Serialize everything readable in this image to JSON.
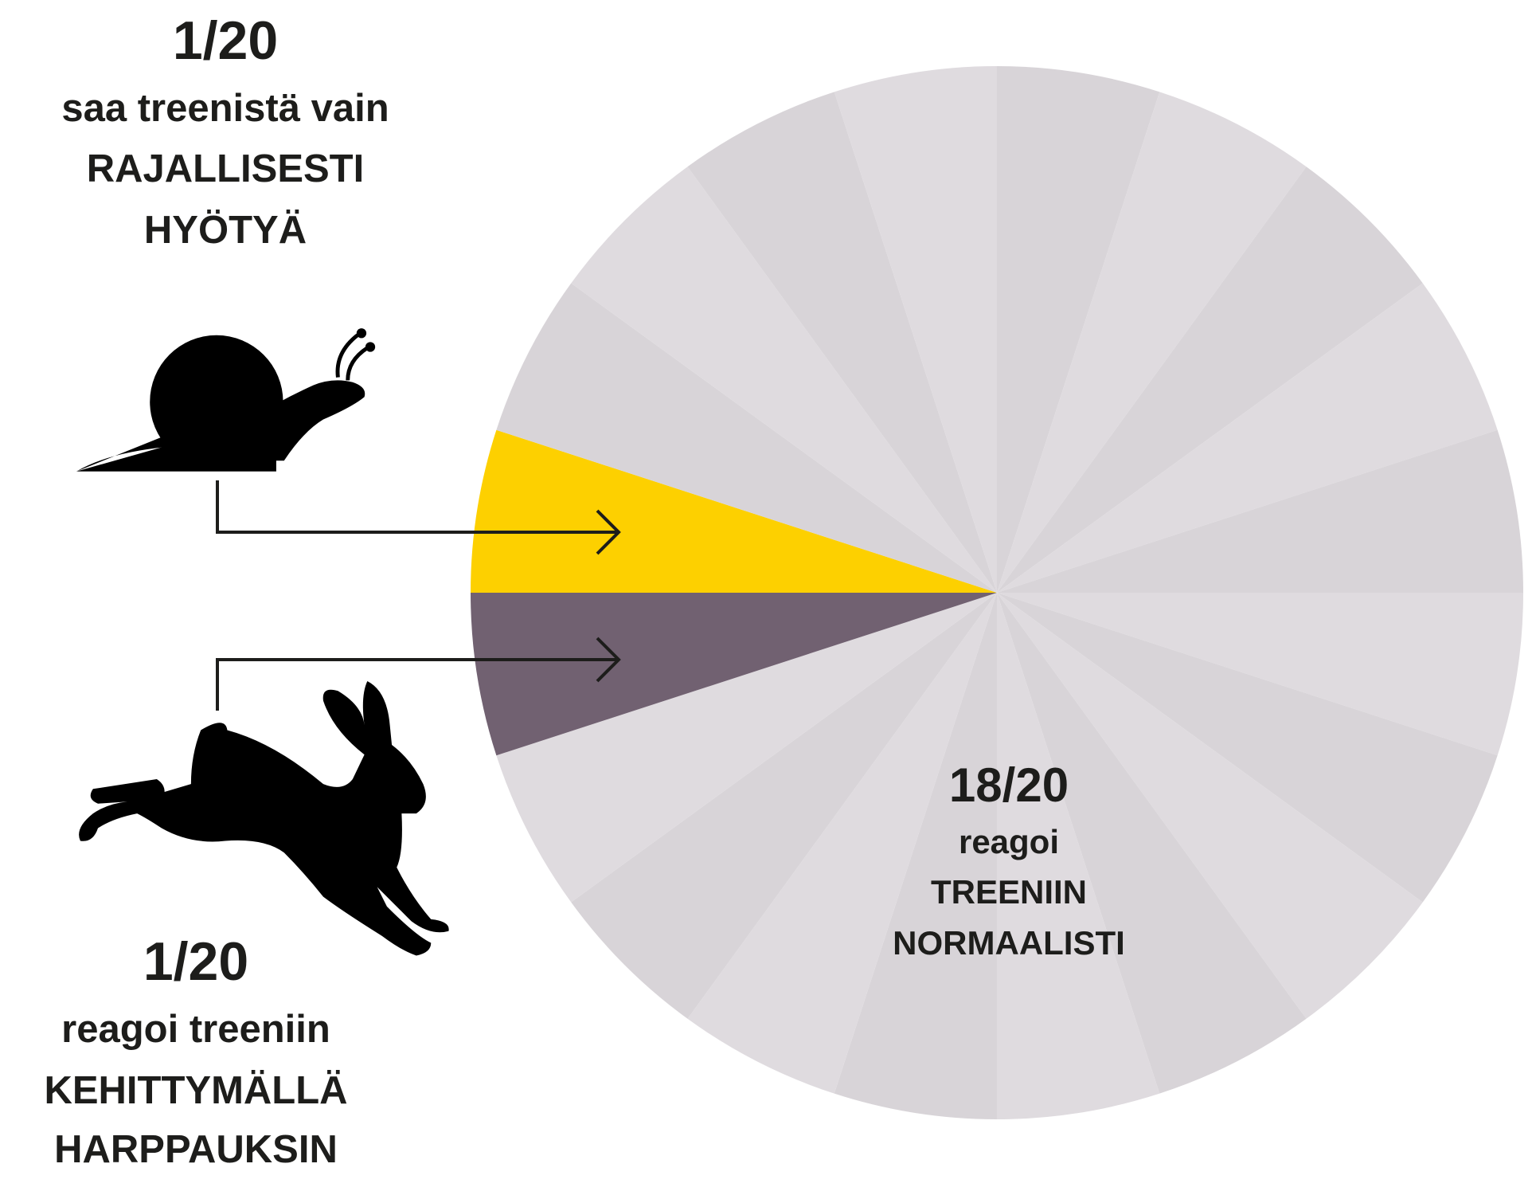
{
  "chart_data": {
    "type": "pie",
    "values": [
      1,
      1,
      1,
      1,
      1,
      1,
      1,
      1,
      1,
      1,
      1,
      1,
      1,
      1,
      1,
      1,
      1,
      1,
      1,
      1
    ],
    "colors": [
      "#fdd000",
      "#d8d4d8",
      "#dfdbdf",
      "#d8d4d8",
      "#dfdbdf",
      "#d8d4d8",
      "#dfdbdf",
      "#d8d4d8",
      "#dfdbdf",
      "#d8d4d8",
      "#dfdbdf",
      "#d8d4d8",
      "#dfdbdf",
      "#d8d4d8",
      "#dfdbdf",
      "#d8d4d8",
      "#dfdbdf",
      "#d8d4d8",
      "#dfdbdf",
      "#716171"
    ],
    "annotations": [
      {
        "fraction": "1/20",
        "lines": [
          "saa treenistä vain",
          "RAJALLISESTI",
          "HYÖTYÄ"
        ]
      },
      {
        "fraction": "1/20",
        "lines": [
          "reagoi treeniin",
          "KEHITTYMÄLLÄ",
          "HARPPAUKSIN"
        ]
      },
      {
        "fraction": "18/20",
        "lines": [
          "reagoi",
          "TREENIIN",
          "NORMAALISTI"
        ]
      }
    ]
  }
}
